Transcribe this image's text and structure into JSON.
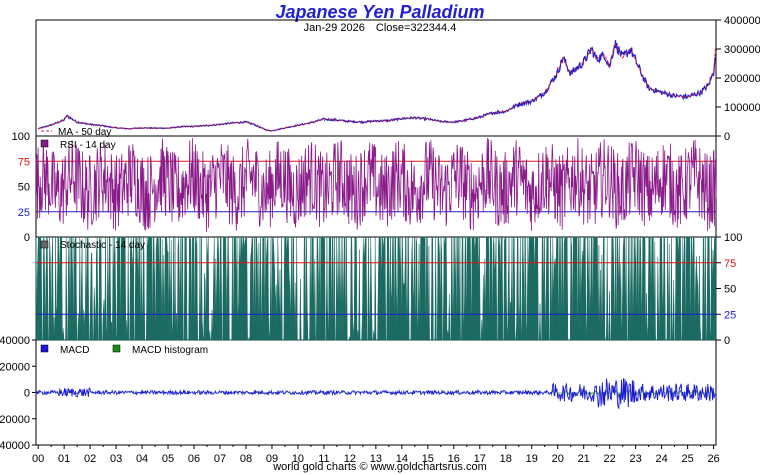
{
  "title": "Japanese Yen Palladium",
  "subtitle_date": "Jan-29  2026",
  "subtitle_close": "Close=322344.4",
  "footer": "world gold charts © www.goldchartsrus.com",
  "colors": {
    "price": "#1a1ad6",
    "ma": "#d62020",
    "rsi": "#8b1a8b",
    "stoch_fill": "#1b6b62",
    "line_red": "#e01010",
    "line_blue": "#1a1ad6",
    "macd_hist": "#1a8a1a"
  },
  "chart_data": [
    {
      "type": "line",
      "panel": "price",
      "legend": [
        "MA - 50 day"
      ],
      "yticks": [
        "400000",
        "300000",
        "200000",
        "100000",
        "0"
      ],
      "ylim": [
        0,
        400000
      ],
      "xticks": [
        "00",
        "01",
        "02",
        "03",
        "04",
        "05",
        "06",
        "07",
        "08",
        "09",
        "10",
        "11",
        "12",
        "13",
        "14",
        "15",
        "16",
        "17",
        "18",
        "19",
        "20",
        "21",
        "22",
        "23",
        "24",
        "25",
        "26"
      ],
      "series": [
        {
          "name": "MA - 50 day",
          "x": [
            2000.0,
            2000.5,
            2001.0,
            2001.1,
            2001.5,
            2002.0,
            2002.5,
            2003.0,
            2003.5,
            2004.0,
            2004.5,
            2005.0,
            2005.5,
            2006.0,
            2006.5,
            2007.0,
            2007.5,
            2008.0,
            2008.3,
            2008.8,
            2009.0,
            2009.5,
            2010.0,
            2010.5,
            2011.0,
            2011.5,
            2012.0,
            2012.5,
            2013.0,
            2013.5,
            2014.0,
            2014.5,
            2015.0,
            2015.5,
            2016.0,
            2016.5,
            2017.0,
            2017.5,
            2018.0,
            2018.5,
            2019.0,
            2019.5,
            2020.0,
            2020.2,
            2020.5,
            2021.0,
            2021.3,
            2021.5,
            2021.8,
            2022.0,
            2022.2,
            2022.5,
            2022.8,
            2023.0,
            2023.3,
            2023.5,
            2024.0,
            2024.5,
            2025.0,
            2025.5,
            2025.8,
            2026.0,
            2026.08
          ],
          "values": [
            25000,
            38000,
            55000,
            70000,
            48000,
            40000,
            35000,
            28000,
            25000,
            28000,
            27000,
            27000,
            32000,
            33000,
            36000,
            40000,
            45000,
            48000,
            40000,
            20000,
            18000,
            28000,
            37000,
            46000,
            58000,
            55000,
            50000,
            48000,
            52000,
            53000,
            60000,
            63000,
            58000,
            50000,
            48000,
            55000,
            65000,
            80000,
            85000,
            110000,
            120000,
            150000,
            220000,
            270000,
            215000,
            255000,
            300000,
            265000,
            280000,
            240000,
            320000,
            270000,
            300000,
            260000,
            200000,
            165000,
            150000,
            138000,
            135000,
            150000,
            175000,
            220000,
            310000
          ]
        }
      ]
    },
    {
      "type": "line",
      "panel": "rsi",
      "legend": [
        "RSI - 14 day"
      ],
      "yticks": [
        "100",
        "75",
        "50",
        "25",
        "0"
      ],
      "ylim": [
        0,
        100
      ],
      "reference_lines": [
        75,
        25
      ]
    },
    {
      "type": "area",
      "panel": "stochastic",
      "legend": [
        "Stochastic - 14 day"
      ],
      "yticks": [
        "100",
        "75",
        "50",
        "25",
        "0"
      ],
      "ylim": [
        0,
        100
      ],
      "reference_lines": [
        75,
        25
      ]
    },
    {
      "type": "line",
      "panel": "macd",
      "legend": [
        "MACD",
        "MACD histogram"
      ],
      "yticks": [
        "40000",
        "20000",
        "0",
        "-20000",
        "-40000"
      ],
      "ylim": [
        -40000,
        40000
      ]
    }
  ]
}
